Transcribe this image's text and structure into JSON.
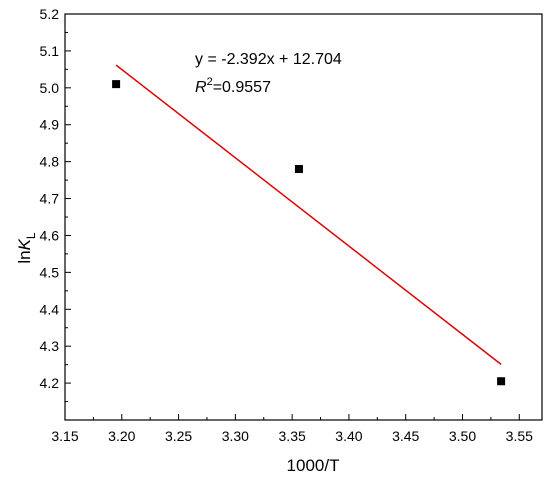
{
  "chart_data": {
    "type": "scatter",
    "xlabel": "1000/T",
    "ylabel_main": "ln",
    "ylabel_italic": "K",
    "ylabel_sub": "L",
    "xlim": [
      3.15,
      3.57
    ],
    "ylim": [
      4.1,
      5.2
    ],
    "xticks": [
      "3.15",
      "3.20",
      "3.25",
      "3.30",
      "3.35",
      "3.40",
      "3.45",
      "3.50",
      "3.55"
    ],
    "yticks": [
      "4.2",
      "4.3",
      "4.4",
      "4.5",
      "4.6",
      "4.7",
      "4.8",
      "4.9",
      "5.0",
      "5.1",
      "5.2"
    ],
    "grid": false,
    "points": [
      {
        "x": 3.195,
        "y": 5.01
      },
      {
        "x": 3.356,
        "y": 4.78
      },
      {
        "x": 3.534,
        "y": 4.205
      }
    ],
    "fit": {
      "slope": -2.392,
      "intercept": 12.704,
      "x_start": 3.195,
      "x_end": 3.534
    },
    "annotation": {
      "equation": "y = -2.392x + 12.704",
      "r2_letter": "R",
      "r2_sup": "2",
      "r2_value": "=0.9557"
    },
    "colors": {
      "points": "#000000",
      "fit_line": "#e00000",
      "axes": "#000000"
    }
  }
}
